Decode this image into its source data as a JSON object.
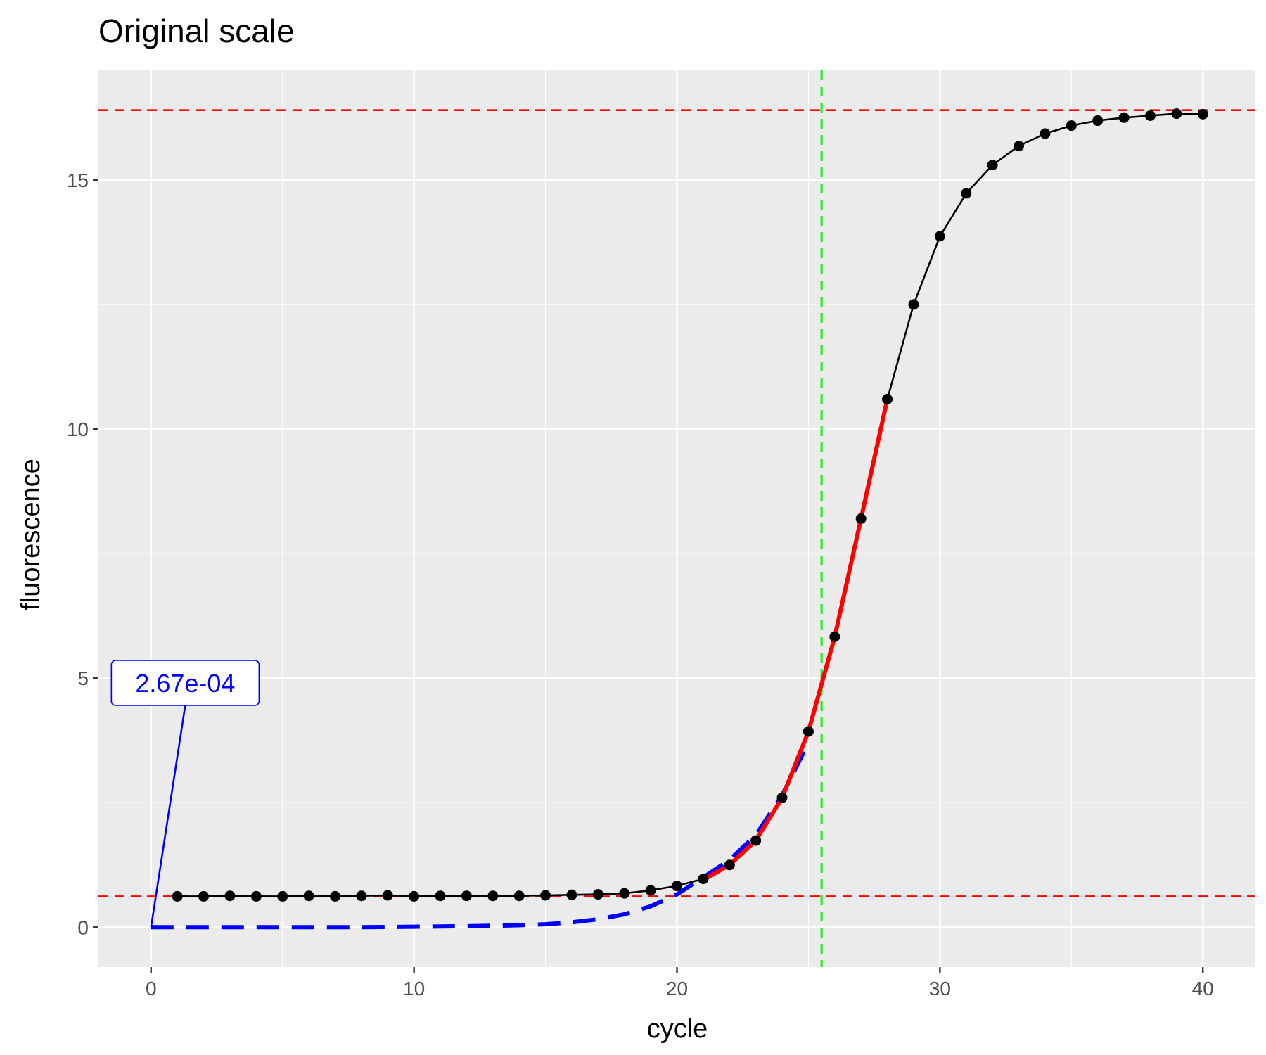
{
  "chart_data": {
    "type": "line",
    "title": "Original scale",
    "xlabel": "cycle",
    "ylabel": "fluorescence",
    "xlim": [
      -2,
      42
    ],
    "ylim": [
      -0.8,
      17.2
    ],
    "x_ticks": [
      0,
      10,
      20,
      30,
      40
    ],
    "y_ticks": [
      0,
      5,
      10,
      15
    ],
    "x_tick_labels": [
      "0",
      "10",
      "20",
      "30",
      "40"
    ],
    "y_tick_labels": [
      "0",
      "5",
      "10",
      "15"
    ],
    "grid": true,
    "legend": "none",
    "colors": {
      "panel": "#ebebeb",
      "grid": "#ffffff",
      "observed": "#000000",
      "fit": "#ff0000",
      "model": "#0000ff",
      "threshold": "#00ff00",
      "asymptote": "#ff0000"
    },
    "series": [
      {
        "x": [
          1,
          2,
          3,
          4,
          5,
          6,
          7,
          8,
          9,
          10,
          11,
          12,
          13,
          14,
          15,
          16,
          17,
          18,
          19,
          20,
          21,
          22,
          23,
          24,
          25,
          26,
          27,
          28,
          29,
          30,
          31,
          32,
          33,
          34,
          35,
          36,
          37,
          38,
          39,
          40
        ],
        "y": [
          0.62,
          0.62,
          0.63,
          0.62,
          0.62,
          0.63,
          0.62,
          0.63,
          0.64,
          0.62,
          0.63,
          0.63,
          0.63,
          0.63,
          0.64,
          0.65,
          0.66,
          0.68,
          0.74,
          0.83,
          0.97,
          1.25,
          1.74,
          2.6,
          3.93,
          5.83,
          8.2,
          10.6,
          12.5,
          13.87,
          14.73,
          15.3,
          15.68,
          15.93,
          16.09,
          16.19,
          16.25,
          16.29,
          16.33,
          16.32
        ]
      },
      {
        "x": [
          21,
          22,
          23,
          24,
          25,
          26,
          27,
          28
        ],
        "y": [
          0.95,
          1.25,
          1.74,
          2.6,
          3.93,
          5.83,
          8.2,
          10.6
        ]
      },
      {
        "x": [
          0,
          2,
          4,
          6,
          8,
          10,
          12,
          14,
          15,
          16,
          17,
          18,
          19,
          20,
          21,
          22,
          23,
          24,
          25
        ],
        "y": [
          0.0,
          0.0,
          0.0,
          0.0,
          0.0,
          0.01,
          0.02,
          0.04,
          0.06,
          0.1,
          0.16,
          0.26,
          0.42,
          0.66,
          1.0,
          1.35,
          1.85,
          2.65,
          3.7
        ]
      }
    ],
    "hlines": [
      0.62,
      16.4
    ],
    "vlines": [
      25.5
    ],
    "annotation": {
      "label": "2.67e-04",
      "point": [
        0,
        0
      ],
      "label_anchor": [
        1.3,
        4.65
      ]
    }
  }
}
